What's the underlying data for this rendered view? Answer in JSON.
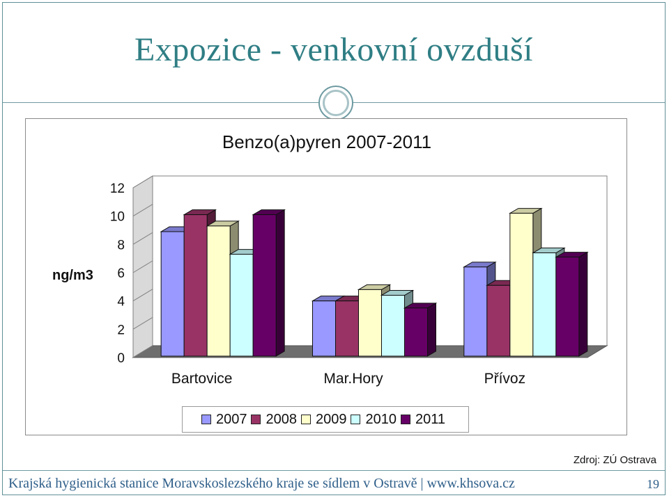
{
  "slide": {
    "title": "Expozice - venkovní ovzduší",
    "source": "Zdroj: ZÚ Ostrava",
    "footer": "Krajská hygienická stanice Moravskoslezského kraje se sídlem v Ostravě | www.khsova.cz",
    "page_number": "19"
  },
  "chart_data": {
    "type": "bar",
    "style": "3d-clustered-column",
    "title": "Benzo(a)pyren 2007-2011",
    "ylabel": "ng/m3",
    "xlabel": "",
    "categories": [
      "Bartovice",
      "Mar.Hory",
      "Přívoz"
    ],
    "yticks": [
      "0",
      "2",
      "4",
      "6",
      "8",
      "10",
      "12"
    ],
    "ylim": [
      0,
      12
    ],
    "legend_position": "bottom",
    "series": [
      {
        "name": "2007",
        "color": "#9999ff",
        "values": [
          8.9,
          4.0,
          6.4
        ]
      },
      {
        "name": "2008",
        "color": "#993366",
        "values": [
          10.1,
          4.0,
          5.1
        ]
      },
      {
        "name": "2009",
        "color": "#ffffcc",
        "values": [
          9.3,
          4.8,
          10.2
        ]
      },
      {
        "name": "2010",
        "color": "#ccffff",
        "values": [
          7.3,
          4.4,
          7.4
        ]
      },
      {
        "name": "2011",
        "color": "#660066",
        "values": [
          10.1,
          3.5,
          7.1
        ]
      }
    ]
  }
}
